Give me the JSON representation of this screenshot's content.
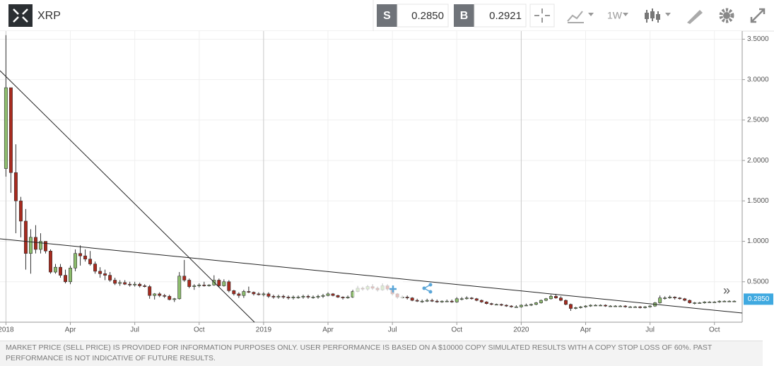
{
  "toolbar": {
    "symbol": "XRP",
    "sell": {
      "label": "S",
      "value": "0.2850"
    },
    "buy": {
      "label": "B",
      "value": "0.2921"
    },
    "timeframe": "1W"
  },
  "chart_data": {
    "type": "candlestick",
    "up_color": "#8dbd6d",
    "down_color": "#a82a1e",
    "grid": true,
    "xlim": [
      -1.2,
      148.6
    ],
    "xticks": [
      {
        "value": 0,
        "label": "2018"
      },
      {
        "value": 13,
        "label": "Apr"
      },
      {
        "value": 26,
        "label": "Jul"
      },
      {
        "value": 39,
        "label": "Oct"
      },
      {
        "value": 52,
        "label": "2019"
      },
      {
        "value": 65,
        "label": "Apr"
      },
      {
        "value": 78,
        "label": "Jul"
      },
      {
        "value": 91,
        "label": "Oct"
      },
      {
        "value": 104,
        "label": "2020"
      },
      {
        "value": 117,
        "label": "Apr"
      },
      {
        "value": 130,
        "label": "Jul"
      },
      {
        "value": 143,
        "label": "Oct"
      }
    ],
    "ylim": [
      0,
      3.6
    ],
    "yticks": [
      {
        "value": 0.5,
        "label": "0.5000"
      },
      {
        "value": 1,
        "label": "1.0000"
      },
      {
        "value": 1.5,
        "label": "1.5000"
      },
      {
        "value": 2,
        "label": "2.0000"
      },
      {
        "value": 2.5,
        "label": "2.5000"
      },
      {
        "value": 3,
        "label": "3.0000"
      },
      {
        "value": 3.5,
        "label": "3.5000"
      }
    ],
    "open": [
      1.9,
      2.9,
      1.85,
      1.5,
      1.25,
      0.85,
      1.05,
      0.9,
      1.0,
      0.88,
      0.62,
      0.68,
      0.58,
      0.5,
      0.67,
      0.85,
      0.82,
      0.78,
      0.72,
      0.63,
      0.6,
      0.58,
      0.52,
      0.48,
      0.49,
      0.47,
      0.46,
      0.47,
      0.45,
      0.44,
      0.33,
      0.35,
      0.33,
      0.32,
      0.28,
      0.29,
      0.57,
      0.52,
      0.44,
      0.45,
      0.46,
      0.45,
      0.46,
      0.52,
      0.45,
      0.5,
      0.39,
      0.35,
      0.33,
      0.38,
      0.37,
      0.35,
      0.34,
      0.35,
      0.32,
      0.31,
      0.32,
      0.31,
      0.3,
      0.31,
      0.31,
      0.32,
      0.31,
      0.31,
      0.32,
      0.33,
      0.35,
      0.33,
      0.31,
      0.3,
      0.31,
      0.38,
      0.42,
      0.41,
      0.44,
      0.42,
      0.4,
      0.45,
      0.41,
      0.35,
      0.31,
      0.31,
      0.3,
      0.27,
      0.26,
      0.26,
      0.27,
      0.26,
      0.25,
      0.26,
      0.26,
      0.25,
      0.29,
      0.29,
      0.3,
      0.29,
      0.27,
      0.25,
      0.23,
      0.22,
      0.22,
      0.21,
      0.2,
      0.19,
      0.19,
      0.21,
      0.21,
      0.22,
      0.24,
      0.27,
      0.29,
      0.32,
      0.3,
      0.27,
      0.22,
      0.17,
      0.18,
      0.19,
      0.2,
      0.21,
      0.21,
      0.21,
      0.2,
      0.2,
      0.2,
      0.2,
      0.19,
      0.19,
      0.19,
      0.18,
      0.19,
      0.2,
      0.24,
      0.3,
      0.3,
      0.31,
      0.3,
      0.29,
      0.27,
      0.24,
      0.24,
      0.24,
      0.25,
      0.25,
      0.25,
      0.26,
      0.26,
      0.26
    ],
    "high": [
      3.55,
      2.9,
      2.2,
      1.55,
      1.4,
      1.15,
      1.2,
      1.1,
      1.0,
      0.9,
      0.72,
      0.72,
      0.65,
      0.7,
      0.9,
      0.95,
      0.9,
      0.88,
      0.75,
      0.68,
      0.65,
      0.62,
      0.55,
      0.52,
      0.52,
      0.5,
      0.5,
      0.49,
      0.47,
      0.46,
      0.36,
      0.37,
      0.35,
      0.34,
      0.3,
      0.62,
      0.77,
      0.54,
      0.47,
      0.48,
      0.5,
      0.47,
      0.58,
      0.54,
      0.53,
      0.52,
      0.4,
      0.37,
      0.4,
      0.44,
      0.38,
      0.37,
      0.37,
      0.37,
      0.34,
      0.34,
      0.34,
      0.33,
      0.33,
      0.33,
      0.34,
      0.34,
      0.33,
      0.34,
      0.35,
      0.37,
      0.36,
      0.34,
      0.32,
      0.33,
      0.4,
      0.45,
      0.44,
      0.46,
      0.47,
      0.44,
      0.48,
      0.47,
      0.42,
      0.36,
      0.33,
      0.33,
      0.31,
      0.29,
      0.28,
      0.29,
      0.29,
      0.28,
      0.27,
      0.28,
      0.28,
      0.31,
      0.31,
      0.32,
      0.31,
      0.3,
      0.28,
      0.26,
      0.24,
      0.23,
      0.23,
      0.22,
      0.21,
      0.21,
      0.22,
      0.23,
      0.23,
      0.25,
      0.28,
      0.3,
      0.34,
      0.35,
      0.32,
      0.28,
      0.23,
      0.19,
      0.2,
      0.21,
      0.22,
      0.22,
      0.22,
      0.22,
      0.21,
      0.21,
      0.21,
      0.21,
      0.2,
      0.2,
      0.2,
      0.2,
      0.21,
      0.25,
      0.33,
      0.32,
      0.33,
      0.32,
      0.31,
      0.3,
      0.28,
      0.25,
      0.25,
      0.26,
      0.26,
      0.26,
      0.27,
      0.27,
      0.27,
      0.27
    ],
    "low": [
      1.8,
      1.6,
      1.1,
      1.05,
      0.65,
      0.6,
      0.85,
      0.85,
      0.85,
      0.6,
      0.6,
      0.55,
      0.48,
      0.47,
      0.63,
      0.7,
      0.75,
      0.7,
      0.6,
      0.55,
      0.52,
      0.5,
      0.46,
      0.45,
      0.46,
      0.44,
      0.44,
      0.43,
      0.43,
      0.29,
      0.28,
      0.31,
      0.3,
      0.27,
      0.25,
      0.28,
      0.5,
      0.42,
      0.4,
      0.43,
      0.44,
      0.44,
      0.45,
      0.43,
      0.44,
      0.37,
      0.33,
      0.3,
      0.3,
      0.36,
      0.33,
      0.33,
      0.32,
      0.3,
      0.29,
      0.29,
      0.29,
      0.28,
      0.28,
      0.29,
      0.29,
      0.29,
      0.29,
      0.29,
      0.3,
      0.32,
      0.32,
      0.3,
      0.28,
      0.29,
      0.3,
      0.37,
      0.39,
      0.39,
      0.4,
      0.38,
      0.39,
      0.39,
      0.33,
      0.29,
      0.29,
      0.28,
      0.26,
      0.25,
      0.24,
      0.25,
      0.25,
      0.24,
      0.24,
      0.25,
      0.24,
      0.24,
      0.27,
      0.28,
      0.28,
      0.26,
      0.24,
      0.22,
      0.21,
      0.21,
      0.2,
      0.19,
      0.18,
      0.18,
      0.18,
      0.2,
      0.2,
      0.21,
      0.23,
      0.26,
      0.28,
      0.29,
      0.26,
      0.21,
      0.14,
      0.16,
      0.17,
      0.18,
      0.19,
      0.2,
      0.2,
      0.19,
      0.19,
      0.19,
      0.19,
      0.18,
      0.18,
      0.18,
      0.17,
      0.17,
      0.18,
      0.19,
      0.23,
      0.28,
      0.29,
      0.28,
      0.28,
      0.26,
      0.23,
      0.22,
      0.23,
      0.23,
      0.24,
      0.24,
      0.24,
      0.25,
      0.25,
      0.25
    ],
    "close": [
      2.9,
      1.85,
      1.5,
      1.25,
      0.85,
      1.05,
      0.9,
      1.0,
      0.88,
      0.62,
      0.68,
      0.58,
      0.5,
      0.67,
      0.85,
      0.82,
      0.78,
      0.72,
      0.63,
      0.6,
      0.58,
      0.52,
      0.48,
      0.49,
      0.47,
      0.46,
      0.47,
      0.45,
      0.44,
      0.33,
      0.35,
      0.33,
      0.32,
      0.28,
      0.29,
      0.57,
      0.52,
      0.44,
      0.45,
      0.46,
      0.45,
      0.46,
      0.52,
      0.45,
      0.5,
      0.39,
      0.35,
      0.33,
      0.38,
      0.37,
      0.35,
      0.34,
      0.35,
      0.32,
      0.31,
      0.32,
      0.31,
      0.3,
      0.31,
      0.31,
      0.32,
      0.31,
      0.31,
      0.32,
      0.33,
      0.35,
      0.33,
      0.31,
      0.3,
      0.31,
      0.38,
      0.42,
      0.41,
      0.44,
      0.42,
      0.4,
      0.45,
      0.41,
      0.35,
      0.31,
      0.31,
      0.3,
      0.27,
      0.26,
      0.26,
      0.27,
      0.26,
      0.25,
      0.26,
      0.26,
      0.25,
      0.29,
      0.29,
      0.3,
      0.29,
      0.27,
      0.25,
      0.23,
      0.22,
      0.22,
      0.21,
      0.2,
      0.19,
      0.19,
      0.21,
      0.21,
      0.22,
      0.24,
      0.27,
      0.29,
      0.32,
      0.3,
      0.27,
      0.22,
      0.17,
      0.18,
      0.19,
      0.2,
      0.21,
      0.21,
      0.21,
      0.2,
      0.2,
      0.2,
      0.2,
      0.19,
      0.19,
      0.19,
      0.18,
      0.19,
      0.2,
      0.24,
      0.3,
      0.3,
      0.31,
      0.3,
      0.29,
      0.27,
      0.24,
      0.24,
      0.24,
      0.25,
      0.25,
      0.25,
      0.26,
      0.26,
      0.26,
      0.26
    ]
  },
  "disclaimer": "MARKET PRICE (SELL PRICE) IS PROVIDED FOR INFORMATION PURPOSES ONLY. USER PERFORMANCE IS BASED ON A $10000 COPY SIMULATED RESULTS WITH A COPY STOP LOSS OF 60%. PAST PERFORMANCE IS NOT INDICATIVE OF FUTURE RESULTS."
}
